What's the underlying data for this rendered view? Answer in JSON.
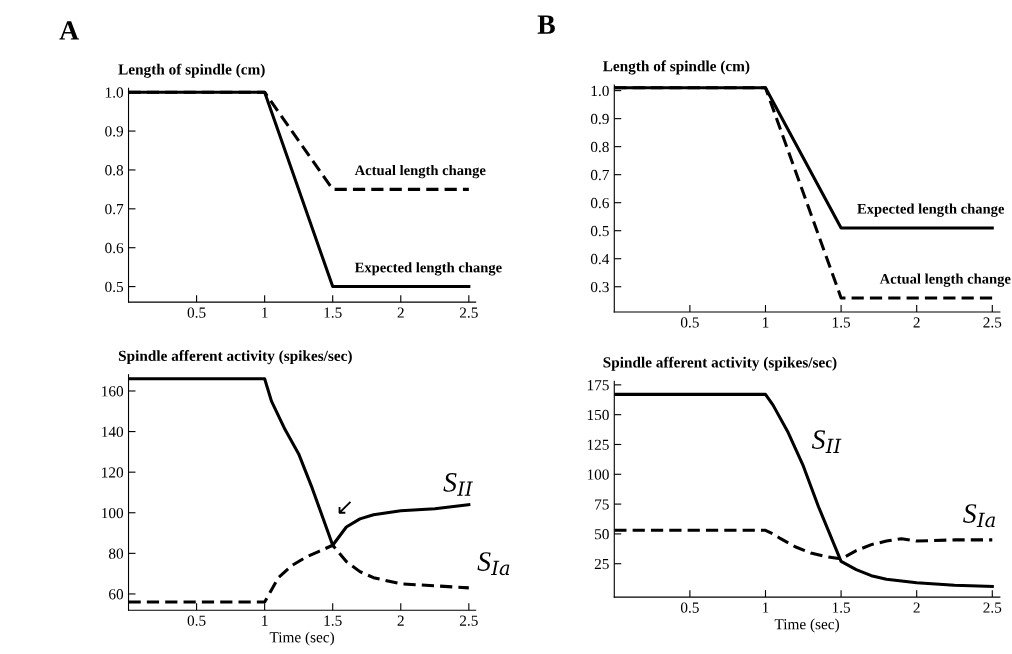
{
  "chart_data": [
    {
      "type": "line",
      "title": "Length of spindle (cm)",
      "annotations": [
        "A",
        {
          "text": "Actual length change",
          "x": 1.6,
          "y": 0.75
        },
        {
          "text": "Expected length change",
          "x": 1.6,
          "y": 0.5
        }
      ],
      "xlim": [
        0,
        2.55
      ],
      "ylim": [
        0.46,
        1.01
      ],
      "xticks": [
        0.5,
        1,
        1.5,
        2,
        2.5
      ],
      "yticks": [
        {
          "value": 1.0,
          "label": "1.0"
        },
        0.9,
        0.8,
        0.7,
        0.6,
        0.5
      ],
      "grid": false,
      "legend": false,
      "series": [
        {
          "color": "#000000",
          "line_style": "dashed",
          "x": [
            0,
            1,
            1.5,
            2.5
          ],
          "values": [
            1.0,
            1.0,
            0.75,
            0.75
          ]
        },
        {
          "color": "#000000",
          "line_style": "solid",
          "x": [
            0,
            1,
            1.5,
            2.5
          ],
          "values": [
            1.0,
            1.0,
            0.5,
            0.5
          ]
        }
      ]
    },
    {
      "type": "line",
      "title": "Length of spindle (cm)",
      "annotations": [
        "B",
        {
          "text": "Expected length change",
          "x": 1.55,
          "y": 0.51
        },
        {
          "text": "Actual length change",
          "x": 1.7,
          "y": 0.26
        }
      ],
      "xlim": [
        0,
        2.55
      ],
      "ylim": [
        0.21,
        1.02
      ],
      "xticks": [
        0.5,
        1,
        1.5,
        2,
        2.5
      ],
      "yticks": [
        {
          "value": 1.0,
          "label": "1.0"
        },
        0.9,
        0.8,
        0.7,
        0.6,
        0.5,
        0.4,
        0.3
      ],
      "grid": false,
      "legend": false,
      "series": [
        {
          "color": "#000000",
          "line_style": "solid",
          "x": [
            0,
            1,
            1.5,
            2.5
          ],
          "values": [
            1.01,
            1.01,
            0.51,
            0.51
          ]
        },
        {
          "color": "#000000",
          "line_style": "dashed",
          "x": [
            0,
            1,
            1.5,
            2.5
          ],
          "values": [
            1.01,
            1.01,
            0.26,
            0.26
          ]
        }
      ]
    },
    {
      "type": "line",
      "title": "Spindle afferent activity (spikes/sec)",
      "xlabel": "Time (sec)",
      "annotations": [
        {
          "text": "S$_{II}$",
          "x": 2.25,
          "y": 102
        },
        {
          "text": "S$_{Ia}$",
          "x": 2.5,
          "y": 63
        },
        {
          "text": "↙",
          "x": 1.5,
          "y": 84
        }
      ],
      "xlim": [
        0,
        2.55
      ],
      "ylim": [
        52,
        168
      ],
      "xticks": [
        0.5,
        1,
        1.5,
        2,
        2.5
      ],
      "yticks": [
        160,
        140,
        120,
        100,
        80,
        60
      ],
      "grid": false,
      "legend": false,
      "series": [
        {
          "color": "#000000",
          "line_style": "solid",
          "x": [
            0,
            1,
            1.05,
            1.15,
            1.25,
            1.35,
            1.5,
            1.6,
            1.7,
            1.8,
            1.9,
            2.0,
            2.25,
            2.5
          ],
          "values": [
            166,
            166,
            155,
            141,
            129,
            112,
            84,
            93,
            97,
            99,
            100,
            101,
            102,
            104
          ]
        },
        {
          "color": "#000000",
          "line_style": "dashed",
          "x": [
            0,
            1,
            1.05,
            1.1,
            1.2,
            1.3,
            1.4,
            1.5,
            1.6,
            1.7,
            1.8,
            2.0,
            2.25,
            2.5
          ],
          "values": [
            56,
            56,
            62,
            68,
            74,
            78,
            81,
            84,
            76,
            71,
            68,
            65,
            64,
            63
          ]
        }
      ]
    },
    {
      "type": "line",
      "title": "Spindle afferent activity (spikes/sec)",
      "xlabel": "Time (sec)",
      "annotations": [
        {
          "text": "S$_{II}$",
          "x": 1.25,
          "y": 107
        },
        {
          "text": "S$_{Ia}$",
          "x": 2.25,
          "y": 45
        }
      ],
      "xlim": [
        0,
        2.55
      ],
      "ylim": [
        -3,
        178
      ],
      "xticks": [
        0.5,
        1,
        1.5,
        2,
        2.5
      ],
      "yticks": [
        175,
        150,
        125,
        100,
        75,
        50,
        25
      ],
      "grid": false,
      "legend": false,
      "series": [
        {
          "color": "#000000",
          "line_style": "solid",
          "x": [
            0,
            1,
            1.05,
            1.15,
            1.25,
            1.35,
            1.5,
            1.6,
            1.7,
            1.8,
            2.0,
            2.25,
            2.5
          ],
          "values": [
            167,
            167,
            158,
            135,
            107,
            73,
            27,
            20,
            15,
            12,
            9,
            7,
            6
          ]
        },
        {
          "color": "#000000",
          "line_style": "dashed",
          "x": [
            0,
            1,
            1.05,
            1.1,
            1.2,
            1.3,
            1.4,
            1.5,
            1.6,
            1.7,
            1.8,
            1.9,
            2.0,
            2.25,
            2.5
          ],
          "values": [
            53,
            53,
            50,
            46,
            39,
            34,
            31,
            29,
            36,
            41,
            44,
            46,
            44,
            45,
            45
          ]
        }
      ]
    }
  ]
}
